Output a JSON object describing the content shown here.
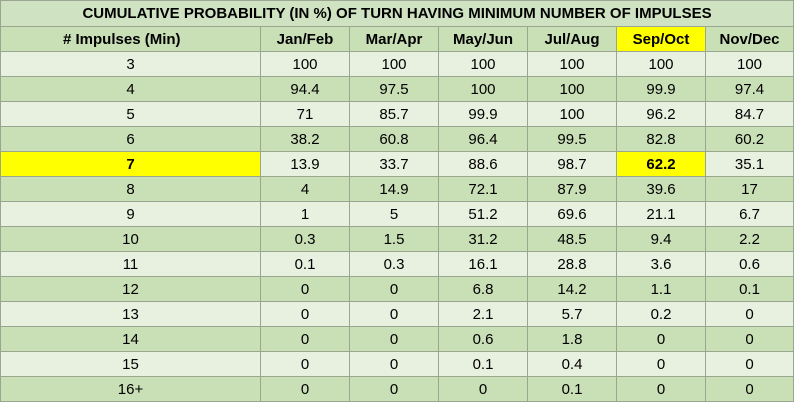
{
  "title": "CUMULATIVE PROBABILITY (IN %) OF TURN HAVING MINIMUM NUMBER OF IMPULSES",
  "columns": [
    "# Impulses (Min)",
    "Jan/Feb",
    "Mar/Apr",
    "May/Jun",
    "Jul/Aug",
    "Sep/Oct",
    "Nov/Dec"
  ],
  "highlight_color": "#ffff00",
  "rows": [
    {
      "label": "3",
      "values": [
        "100",
        "100",
        "100",
        "100",
        "100",
        "100"
      ]
    },
    {
      "label": "4",
      "values": [
        "94.4",
        "97.5",
        "100",
        "100",
        "99.9",
        "97.4"
      ]
    },
    {
      "label": "5",
      "values": [
        "71",
        "85.7",
        "99.9",
        "100",
        "96.2",
        "84.7"
      ]
    },
    {
      "label": "6",
      "values": [
        "38.2",
        "60.8",
        "96.4",
        "99.5",
        "82.8",
        "60.2"
      ]
    },
    {
      "label": "7",
      "values": [
        "13.9",
        "33.7",
        "88.6",
        "98.7",
        "62.2",
        "35.1"
      ]
    },
    {
      "label": "8",
      "values": [
        "4",
        "14.9",
        "72.1",
        "87.9",
        "39.6",
        "17"
      ]
    },
    {
      "label": "9",
      "values": [
        "1",
        "5",
        "51.2",
        "69.6",
        "21.1",
        "6.7"
      ]
    },
    {
      "label": "10",
      "values": [
        "0.3",
        "1.5",
        "31.2",
        "48.5",
        "9.4",
        "2.2"
      ]
    },
    {
      "label": "11",
      "values": [
        "0.1",
        "0.3",
        "16.1",
        "28.8",
        "3.6",
        "0.6"
      ]
    },
    {
      "label": "12",
      "values": [
        "0",
        "0",
        "6.8",
        "14.2",
        "1.1",
        "0.1"
      ]
    },
    {
      "label": "13",
      "values": [
        "0",
        "0",
        "2.1",
        "5.7",
        "0.2",
        "0"
      ]
    },
    {
      "label": "14",
      "values": [
        "0",
        "0",
        "0.6",
        "1.8",
        "0",
        "0"
      ]
    },
    {
      "label": "15",
      "values": [
        "0",
        "0",
        "0.1",
        "0.4",
        "0",
        "0"
      ]
    },
    {
      "label": "16+",
      "values": [
        "0",
        "0",
        "0",
        "0.1",
        "0",
        "0"
      ]
    }
  ]
}
